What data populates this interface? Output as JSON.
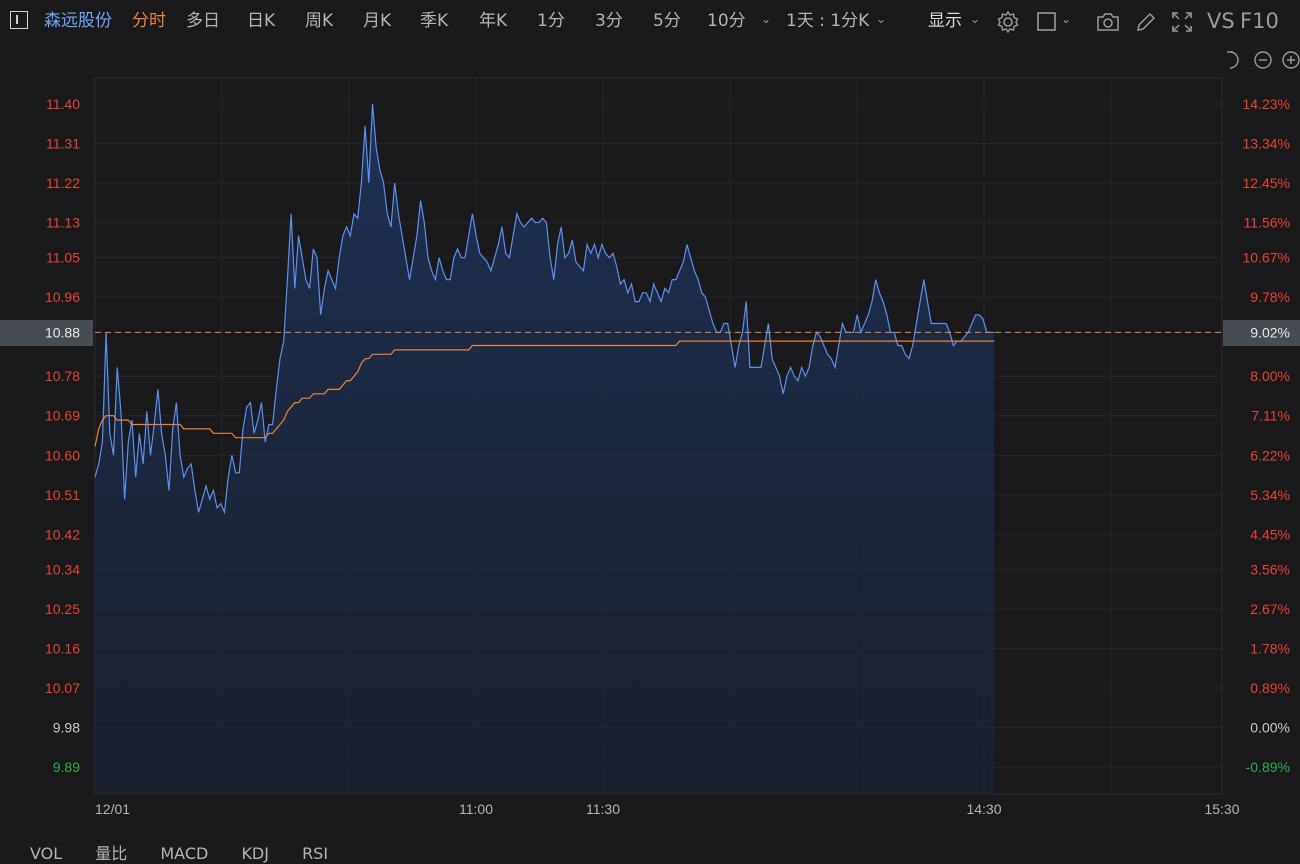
{
  "toolbar": {
    "stock_name": "森远股份",
    "tabs": [
      "分时",
      "多日",
      "日K",
      "周K",
      "月K",
      "季K",
      "年K",
      "1分",
      "3分",
      "5分",
      "10分"
    ],
    "period": "1天 : 1分K",
    "display": "显示",
    "vs": "VS",
    "f10": "F10"
  },
  "colors": {
    "background": "#1a1a1c",
    "price_line": "#5b8ff0",
    "avg_line": "#e8843a",
    "up": "#e8412f",
    "down": "#27b04a",
    "neutral": "#c8c8c8"
  },
  "indicator_tabs": [
    "VOL",
    "量比",
    "MACD",
    "KDJ",
    "RSI"
  ],
  "chart_data": {
    "type": "line",
    "x_ticks": [
      "12/01",
      "11:00",
      "11:30",
      "14:30",
      "15:30"
    ],
    "y_ticks_left": [
      "11.40",
      "11.31",
      "11.22",
      "11.13",
      "11.05",
      "10.96",
      "10.88",
      "10.78",
      "10.69",
      "10.60",
      "10.51",
      "10.42",
      "10.34",
      "10.25",
      "10.16",
      "10.07",
      "9.98",
      "9.89"
    ],
    "y_ticks_right": [
      "14.23%",
      "13.34%",
      "12.45%",
      "11.56%",
      "10.67%",
      "9.78%",
      "9.02%",
      "8.00%",
      "7.11%",
      "6.22%",
      "5.34%",
      "4.45%",
      "3.56%",
      "2.67%",
      "1.78%",
      "0.89%",
      "0.00%",
      "-0.89%"
    ],
    "ylim": [
      9.89,
      11.4
    ],
    "prev_close": 9.98,
    "current_price": "10.88",
    "current_pct": "9.02%",
    "series": [
      {
        "values": [
          10.55,
          10.58,
          10.63,
          10.88,
          10.65,
          10.6,
          10.8,
          10.7,
          10.5,
          10.63,
          10.68,
          10.55,
          10.65,
          10.58,
          10.7,
          10.6,
          10.67,
          10.75,
          10.65,
          10.6,
          10.52,
          10.66,
          10.72,
          10.6,
          10.55,
          10.57,
          10.58,
          10.52,
          10.47,
          10.5,
          10.53,
          10.5,
          10.52,
          10.48,
          10.49,
          10.47,
          10.55,
          10.6,
          10.56,
          10.56,
          10.66,
          10.71,
          10.72,
          10.65,
          10.68,
          10.72,
          10.63,
          10.67,
          10.67,
          10.75,
          10.82,
          10.86,
          11.0,
          11.15,
          10.98,
          11.1,
          11.05,
          11.0,
          10.98,
          11.07,
          11.05,
          10.92,
          10.98,
          11.02,
          11.0,
          10.98,
          11.05,
          11.1,
          11.12,
          11.1,
          11.15,
          11.14,
          11.22,
          11.35,
          11.22,
          11.4,
          11.3,
          11.25,
          11.22,
          11.15,
          11.12,
          11.22,
          11.15,
          11.1,
          11.05,
          11.0,
          11.05,
          11.1,
          11.18,
          11.13,
          11.05,
          11.02,
          11.0,
          11.05,
          11.02,
          11.0,
          11.0,
          11.05,
          11.07,
          11.05,
          11.05,
          11.1,
          11.15,
          11.1,
          11.06,
          11.05,
          11.04,
          11.02,
          11.05,
          11.08,
          11.12,
          11.06,
          11.05,
          11.1,
          11.15,
          11.13,
          11.12,
          11.13,
          11.14,
          11.13,
          11.13,
          11.14,
          11.13,
          11.05,
          11.0,
          11.08,
          11.12,
          11.05,
          11.06,
          11.09,
          11.04,
          11.03,
          11.02,
          11.08,
          11.06,
          11.08,
          11.05,
          11.08,
          11.06,
          11.05,
          11.06,
          11.03,
          10.99,
          11.0,
          10.97,
          10.99,
          10.95,
          10.95,
          10.97,
          10.97,
          10.95,
          10.99,
          10.97,
          10.95,
          10.98,
          10.97,
          11.0,
          11.0,
          11.02,
          11.04,
          11.08,
          11.05,
          11.02,
          11.0,
          10.97,
          10.96,
          10.93,
          10.9,
          10.88,
          10.88,
          10.9,
          10.9,
          10.85,
          10.8,
          10.85,
          10.88,
          10.95,
          10.8,
          10.8,
          10.8,
          10.8,
          10.85,
          10.9,
          10.82,
          10.8,
          10.78,
          10.74,
          10.78,
          10.8,
          10.78,
          10.77,
          10.8,
          10.78,
          10.8,
          10.85,
          10.88,
          10.87,
          10.85,
          10.83,
          10.82,
          10.8,
          10.85,
          10.9,
          10.88,
          10.88,
          10.88,
          10.92,
          10.88,
          10.9,
          10.92,
          10.95,
          11.0,
          10.97,
          10.95,
          10.92,
          10.88,
          10.88,
          10.85,
          10.85,
          10.83,
          10.82,
          10.85,
          10.9,
          10.95,
          11.0,
          10.95,
          10.9,
          10.9,
          10.9,
          10.9,
          10.9,
          10.88,
          10.85,
          10.86,
          10.86,
          10.87,
          10.88,
          10.9,
          10.92,
          10.92,
          10.91,
          10.88,
          10.88,
          10.88
        ]
      },
      {
        "values": [
          10.62,
          10.66,
          10.68,
          10.69,
          10.69,
          10.69,
          10.68,
          10.68,
          10.68,
          10.68,
          10.67,
          10.67,
          10.67,
          10.67,
          10.67,
          10.67,
          10.67,
          10.67,
          10.67,
          10.67,
          10.67,
          10.67,
          10.67,
          10.67,
          10.66,
          10.66,
          10.66,
          10.66,
          10.66,
          10.66,
          10.66,
          10.66,
          10.65,
          10.65,
          10.65,
          10.65,
          10.65,
          10.65,
          10.64,
          10.64,
          10.64,
          10.64,
          10.64,
          10.64,
          10.64,
          10.64,
          10.64,
          10.65,
          10.65,
          10.66,
          10.67,
          10.68,
          10.7,
          10.71,
          10.72,
          10.72,
          10.73,
          10.73,
          10.73,
          10.74,
          10.74,
          10.74,
          10.74,
          10.75,
          10.75,
          10.75,
          10.75,
          10.76,
          10.77,
          10.77,
          10.78,
          10.79,
          10.81,
          10.82,
          10.82,
          10.83,
          10.83,
          10.83,
          10.83,
          10.83,
          10.83,
          10.84,
          10.84,
          10.84,
          10.84,
          10.84,
          10.84,
          10.84,
          10.84,
          10.84,
          10.84,
          10.84,
          10.84,
          10.84,
          10.84,
          10.84,
          10.84,
          10.84,
          10.84,
          10.84,
          10.84,
          10.84,
          10.85,
          10.85,
          10.85,
          10.85,
          10.85,
          10.85,
          10.85,
          10.85,
          10.85,
          10.85,
          10.85,
          10.85,
          10.85,
          10.85,
          10.85,
          10.85,
          10.85,
          10.85,
          10.85,
          10.85,
          10.85,
          10.85,
          10.85,
          10.85,
          10.85,
          10.85,
          10.85,
          10.85,
          10.85,
          10.85,
          10.85,
          10.85,
          10.85,
          10.85,
          10.85,
          10.85,
          10.85,
          10.85,
          10.85,
          10.85,
          10.85,
          10.85,
          10.85,
          10.85,
          10.85,
          10.85,
          10.85,
          10.85,
          10.85,
          10.85,
          10.85,
          10.85,
          10.85,
          10.85,
          10.85,
          10.85,
          10.86,
          10.86,
          10.86,
          10.86,
          10.86,
          10.86,
          10.86,
          10.86,
          10.86,
          10.86,
          10.86,
          10.86,
          10.86,
          10.86,
          10.86,
          10.86,
          10.86,
          10.86,
          10.86,
          10.86,
          10.86,
          10.86,
          10.86,
          10.86,
          10.86,
          10.86,
          10.86,
          10.86,
          10.86,
          10.86,
          10.86,
          10.86,
          10.86,
          10.86,
          10.86,
          10.86,
          10.86,
          10.86,
          10.86,
          10.86,
          10.86,
          10.86,
          10.86,
          10.86,
          10.86,
          10.86,
          10.86,
          10.86,
          10.86,
          10.86,
          10.86,
          10.86,
          10.86,
          10.86,
          10.86,
          10.86,
          10.86,
          10.86,
          10.86,
          10.86,
          10.86,
          10.86,
          10.86,
          10.86,
          10.86,
          10.86,
          10.86,
          10.86,
          10.86,
          10.86,
          10.86,
          10.86,
          10.86,
          10.86,
          10.86,
          10.86,
          10.86,
          10.86,
          10.86,
          10.86,
          10.86,
          10.86,
          10.86,
          10.86,
          10.86,
          10.86
        ]
      }
    ]
  }
}
